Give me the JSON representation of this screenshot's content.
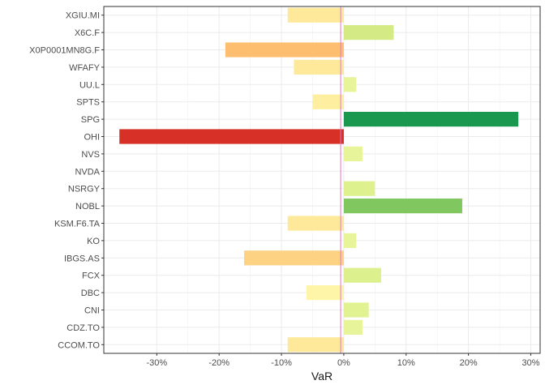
{
  "chart_data": {
    "type": "bar",
    "orientation": "horizontal",
    "xlabel": "VaR",
    "ylabel": "",
    "title": "",
    "xlim": [
      -0.385,
      0.315
    ],
    "xticks": [
      -0.3,
      -0.2,
      -0.1,
      0,
      0.1,
      0.2,
      0.3
    ],
    "xtick_labels": [
      "-30%",
      "-20%",
      "-10%",
      "0%",
      "10%",
      "20%",
      "30%"
    ],
    "grid": true,
    "legend": "none",
    "reference_line": {
      "x": -0.005,
      "color": "#e377c2"
    },
    "categories": [
      "XGIU.MI",
      "X6C.F",
      "X0P0001MN8G.F",
      "WFAFY",
      "UU.L",
      "SPTS",
      "SPG",
      "OHI",
      "NVS",
      "NVDA",
      "NSRGY",
      "NOBL",
      "KSM.F6.TA",
      "KO",
      "IBGS.AS",
      "FCX",
      "DBC",
      "CNI",
      "CDZ.TO",
      "CCOM.TO"
    ],
    "values": [
      -0.09,
      0.08,
      -0.19,
      -0.08,
      0.02,
      -0.05,
      0.28,
      -0.36,
      0.03,
      0.0,
      0.05,
      0.19,
      -0.09,
      0.02,
      -0.16,
      0.06,
      -0.06,
      0.04,
      0.03,
      -0.09
    ],
    "colors": [
      "#fee99a",
      "#d4ea84",
      "#fdbf6f",
      "#fee99a",
      "#e7f49a",
      "#feee9f",
      "#1a9850",
      "#d73027",
      "#e7f49a",
      "#ffffbf",
      "#def18f",
      "#7fc75e",
      "#fee99a",
      "#e7f49a",
      "#fdd283",
      "#dcf08e",
      "#fff5a8",
      "#e0f291",
      "#e7f49a",
      "#fee99a"
    ]
  }
}
